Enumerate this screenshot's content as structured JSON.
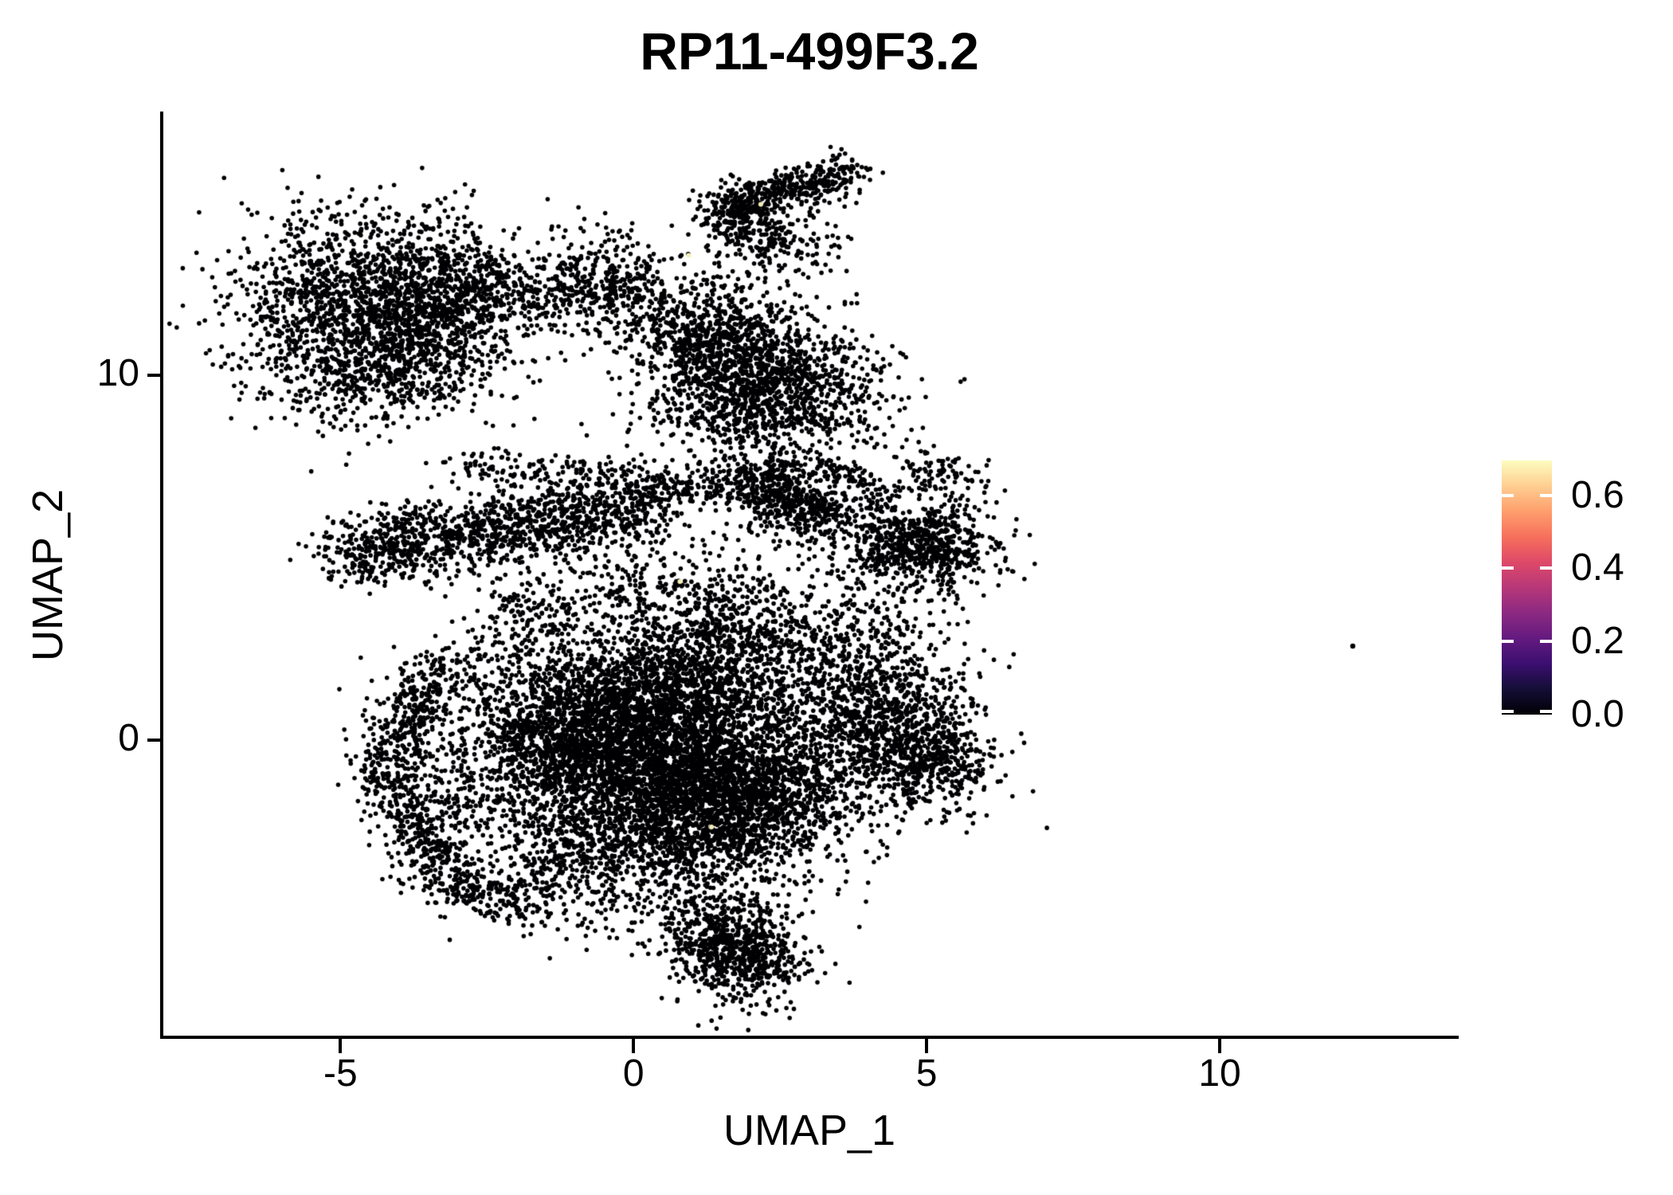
{
  "title": "RP11-499F3.2",
  "axes": {
    "x_label": "UMAP_1",
    "y_label": "UMAP_2",
    "x_tick_labels": [
      "-5",
      "0",
      "5",
      "10"
    ],
    "y_tick_labels": [
      "0",
      "10"
    ]
  },
  "legend": {
    "tick_labels": [
      "0.0",
      "0.2",
      "0.4",
      "0.6"
    ],
    "tick_values": [
      0.0,
      0.2,
      0.4,
      0.6
    ],
    "scale_max": 0.695,
    "colormap": "magma",
    "gradient_stops": [
      "#000004",
      "#140e36",
      "#3b0f70",
      "#641a80",
      "#8c2981",
      "#b73779",
      "#de4968",
      "#f7705c",
      "#fe9f6d",
      "#fece91",
      "#fcfdbf"
    ]
  },
  "chart_data": {
    "type": "scatter",
    "title": "RP11-499F3.2",
    "xlabel": "UMAP_1",
    "ylabel": "UMAP_2",
    "x_ticks": [
      -5,
      0,
      5,
      10
    ],
    "y_ticks": [
      0,
      10
    ],
    "x_range": [
      -8.05,
      14.05
    ],
    "y_range": [
      -8.15,
      17.2
    ],
    "grid": false,
    "legend_position": "right",
    "point_color": "#000004",
    "point_radius": 2.8,
    "cluster_blobs_format": "[center_x, center_y, sigma_x, sigma_y, n_points]",
    "cluster_blobs": [
      [
        -4.8,
        11.8,
        1.05,
        1.35,
        1500
      ],
      [
        -3.3,
        11.9,
        0.75,
        1.1,
        800
      ],
      [
        -4.3,
        9.95,
        0.8,
        0.55,
        250
      ],
      [
        1.75,
        14.3,
        0.35,
        0.45,
        150
      ],
      [
        2.2,
        9.7,
        1.0,
        0.95,
        1500
      ],
      [
        1.6,
        11.3,
        0.55,
        0.8,
        300
      ],
      [
        4.8,
        5.45,
        0.7,
        0.8,
        650
      ],
      [
        0.2,
        -0.8,
        1.3,
        1.2,
        2600
      ],
      [
        1.7,
        -1.6,
        1.0,
        1.1,
        1800
      ],
      [
        0.6,
        1.4,
        1.1,
        0.9,
        1300
      ],
      [
        -1.2,
        0.2,
        0.9,
        1.0,
        1000
      ],
      [
        4.3,
        0.2,
        0.85,
        1.0,
        900
      ],
      [
        5.15,
        -0.5,
        0.5,
        0.7,
        300
      ],
      [
        1.7,
        -5.6,
        0.6,
        0.8,
        300
      ],
      [
        -0.6,
        -3.2,
        1.1,
        0.9,
        700
      ],
      [
        3.9,
        2.2,
        0.8,
        1.1,
        500
      ],
      [
        1.5,
        2.6,
        0.9,
        0.8,
        400
      ],
      [
        -1.9,
        3.0,
        0.5,
        1.0,
        200
      ],
      [
        -3.3,
        -1.2,
        0.6,
        1.4,
        250
      ]
    ],
    "cluster_bands_format": "[x1, y1, x2, y2, sigma, n_points]",
    "cluster_bands": [
      [
        -2.85,
        12.7,
        -0.5,
        11.8,
        0.5,
        300
      ],
      [
        -0.85,
        13.4,
        1.35,
        10.6,
        0.55,
        550
      ],
      [
        1.55,
        14.55,
        3.75,
        15.6,
        0.28,
        420
      ],
      [
        2.0,
        14.0,
        2.9,
        13.3,
        0.45,
        180
      ],
      [
        2.3,
        7.6,
        2.65,
        6.3,
        0.35,
        250
      ],
      [
        3.2,
        7.65,
        4.0,
        7.05,
        0.12,
        60
      ],
      [
        2.2,
        6.3,
        3.6,
        5.8,
        0.5,
        120
      ],
      [
        -5.0,
        5.35,
        1.3,
        7.1,
        0.38,
        900
      ],
      [
        -4.95,
        4.7,
        0.3,
        6.1,
        0.35,
        550
      ],
      [
        -3.3,
        7.5,
        0.0,
        7.3,
        0.25,
        130
      ],
      [
        1.5,
        6.95,
        3.85,
        6.2,
        0.4,
        300
      ],
      [
        4.6,
        5.3,
        5.65,
        5.1,
        0.3,
        150
      ],
      [
        4.8,
        7.6,
        5.8,
        6.9,
        0.3,
        80
      ],
      [
        -0.9,
        4.3,
        2.6,
        3.4,
        0.75,
        450
      ],
      [
        -3.1,
        2.3,
        -4.35,
        -0.6,
        0.3,
        350
      ],
      [
        -4.35,
        -0.6,
        -3.05,
        -4.0,
        0.3,
        350
      ],
      [
        -3.05,
        -4.0,
        -1.8,
        -4.6,
        0.35,
        150
      ],
      [
        1.3,
        -4.9,
        2.1,
        -6.6,
        0.5,
        550
      ]
    ],
    "outlier_point": {
      "x": 12.27,
      "y": 2.58
    },
    "high_expression_points": {
      "color": "#f3eeb6",
      "points": [
        [
          2.17,
          14.7
        ],
        [
          0.94,
          13.3
        ],
        [
          0.79,
          4.35
        ],
        [
          1.33,
          -2.38
        ]
      ]
    }
  }
}
